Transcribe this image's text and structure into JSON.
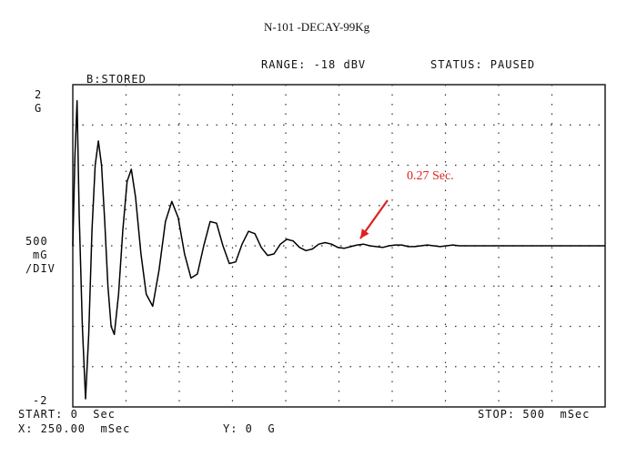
{
  "chart_data": {
    "type": "line",
    "title": "N-101 -DECAY-99Kg",
    "header": {
      "range": "RANGE: -18 dBV",
      "status": "STATUS: PAUSED",
      "trace": "B:STORED"
    },
    "y_axis": {
      "top_value": "2",
      "top_unit": "G",
      "scale_value": "500",
      "scale_unit": "mG",
      "scale_suffix": "/DIV",
      "bottom_value": "-2",
      "ylim": [
        -2,
        2
      ]
    },
    "x_axis": {
      "start": "START: 0  Sec",
      "stop": "STOP: 500  mSec",
      "xlim": [
        0,
        500
      ],
      "unit": "ms"
    },
    "cursor": {
      "x": "X: 250.00  mSec",
      "y": "Y: 0  G"
    },
    "grid": true,
    "divisions": {
      "x": 10,
      "y": 8
    },
    "annotation": {
      "text": "0.27 Sec.",
      "points_to_ms": 270,
      "color": "#e02020"
    },
    "series": [
      {
        "x": [
          0,
          2,
          4,
          6,
          9,
          12,
          15,
          18,
          21,
          24,
          27,
          30,
          33,
          36,
          39,
          43,
          47,
          51,
          55,
          59,
          64,
          69,
          75,
          81,
          87,
          93,
          99,
          105,
          111,
          117,
          123,
          129,
          135,
          141,
          147,
          153,
          159,
          165,
          171,
          177,
          183,
          189,
          195,
          201,
          207,
          213,
          219,
          225,
          231,
          237,
          243,
          249,
          255,
          261,
          267,
          273,
          279,
          285,
          291,
          297,
          303,
          309,
          315,
          321,
          327,
          333,
          339,
          345,
          351,
          357,
          363,
          369,
          375,
          381,
          390,
          400,
          420,
          440,
          460,
          480,
          500
        ],
        "y": [
          0,
          1.1,
          1.8,
          0.4,
          -1.0,
          -1.9,
          -1.1,
          0.2,
          1.0,
          1.3,
          1.0,
          0.3,
          -0.5,
          -1.0,
          -1.1,
          -0.6,
          0.2,
          0.8,
          0.95,
          0.6,
          -0.1,
          -0.6,
          -0.75,
          -0.3,
          0.3,
          0.55,
          0.35,
          -0.1,
          -0.4,
          -0.35,
          0.0,
          0.3,
          0.28,
          0.0,
          -0.22,
          -0.2,
          0.02,
          0.18,
          0.15,
          -0.02,
          -0.12,
          -0.1,
          0.02,
          0.08,
          0.06,
          -0.02,
          -0.06,
          -0.04,
          0.02,
          0.04,
          0.02,
          -0.02,
          -0.03,
          -0.01,
          0.01,
          0.02,
          0.0,
          -0.01,
          -0.02,
          0.0,
          0.01,
          0.01,
          -0.01,
          -0.01,
          0.0,
          0.01,
          0.0,
          -0.01,
          0.0,
          0.01,
          0.0,
          0.0,
          0.0,
          0.0,
          0.0,
          0.0,
          0.0,
          0.0,
          0.0,
          0.0,
          0.0
        ]
      }
    ]
  }
}
